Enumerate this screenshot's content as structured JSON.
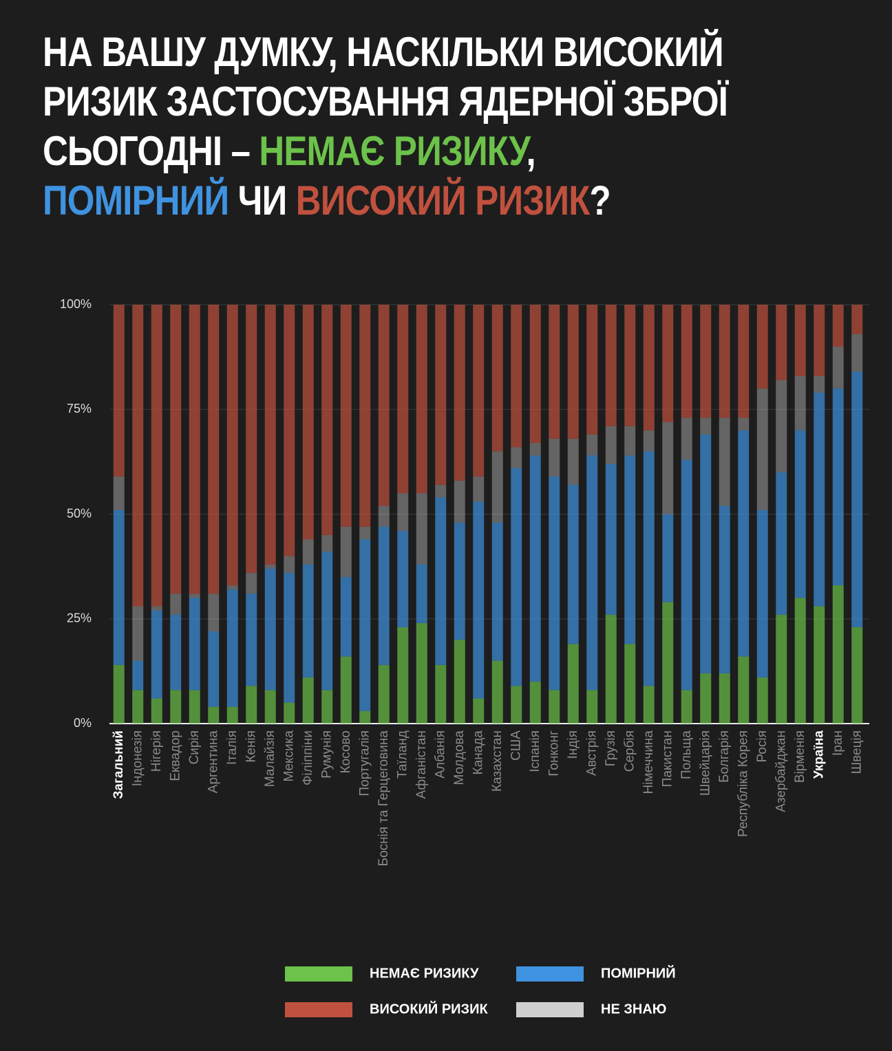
{
  "chart_data": {
    "type": "stacked_bar",
    "title_parts": [
      "НА ВАШУ ДУМКУ, НАСКІЛЬКИ ВИСОКИЙ",
      "РИЗИК ЗАСТОСУВАННЯ ЯДЕРНОЇ ЗБРОЇ",
      "СЬОГОДНІ –",
      "НЕМАЄ РИЗИКУ",
      ",",
      "ПОМІРНИЙ",
      "ЧИ",
      "ВИСОКИЙ РИЗИК",
      "?"
    ],
    "categories": [
      "Загальний",
      "Індонезія",
      "Нігерія",
      "Еквадор",
      "Сирія",
      "Аргентина",
      "Італія",
      "Кенія",
      "Малайзія",
      "Мексика",
      "Філіппіни",
      "Румунія",
      "Косово",
      "Португалія",
      "Боснія та Герцеговина",
      "Таїланд",
      "Афганістан",
      "Албанія",
      "Молдова",
      "Канада",
      "Казахстан",
      "США",
      "Іспанія",
      "Гонконг",
      "Індія",
      "Австрія",
      "Грузія",
      "Сербія",
      "Німеччина",
      "Пакистан",
      "Польща",
      "Швейцарія",
      "Болгарія",
      "Республіка Корея",
      "Росія",
      "Азербайджан",
      "Вірменія",
      "Україна",
      "Іран",
      "Швеція"
    ],
    "bold_categories": [
      0,
      37
    ],
    "series": [
      {
        "name": "НЕМАЄ РИЗИКУ",
        "color": "#6cc24a",
        "values": [
          14,
          8,
          6,
          8,
          8,
          4,
          4,
          9,
          8,
          5,
          11,
          8,
          16,
          3,
          14,
          23,
          24,
          14,
          20,
          6,
          15,
          9,
          10,
          8,
          19,
          8,
          26,
          19,
          9,
          29,
          8,
          12,
          12,
          16,
          11,
          26,
          30,
          28,
          33,
          23
        ]
      },
      {
        "name": "ПОМІРНИЙ",
        "color": "#3f93e0",
        "values": [
          37,
          7,
          21,
          18,
          22,
          18,
          28,
          22,
          29,
          31,
          27,
          33,
          19,
          41,
          33,
          23,
          14,
          40,
          28,
          47,
          33,
          52,
          54,
          51,
          38,
          56,
          36,
          45,
          56,
          21,
          55,
          57,
          40,
          54,
          40,
          34,
          40,
          51,
          47,
          61
        ]
      },
      {
        "name": "НЕ ЗНАЮ",
        "color": "#cfcfcf",
        "values": [
          8,
          13,
          1,
          5,
          1,
          9,
          1,
          5,
          1,
          4,
          6,
          4,
          12,
          3,
          5,
          9,
          17,
          3,
          10,
          6,
          17,
          5,
          3,
          9,
          11,
          5,
          9,
          7,
          5,
          22,
          10,
          4,
          21,
          3,
          29,
          22,
          13,
          4,
          10,
          9
        ]
      },
      {
        "name": "ВИСОКИЙ РИЗИК",
        "color": "#c0513f",
        "values": [
          41,
          72,
          72,
          69,
          69,
          69,
          67,
          64,
          62,
          60,
          56,
          55,
          53,
          53,
          48,
          45,
          45,
          43,
          42,
          41,
          35,
          34,
          33,
          32,
          32,
          31,
          29,
          29,
          30,
          28,
          27,
          27,
          27,
          27,
          20,
          18,
          17,
          17,
          10,
          7
        ]
      }
    ],
    "ylim": [
      0,
      100
    ],
    "yticks": [
      {
        "value": 0,
        "label": "0%"
      },
      {
        "value": 25,
        "label": "25%"
      },
      {
        "value": 50,
        "label": "50%"
      },
      {
        "value": 75,
        "label": "75%"
      },
      {
        "value": 100,
        "label": "100%"
      }
    ],
    "grid": true
  }
}
